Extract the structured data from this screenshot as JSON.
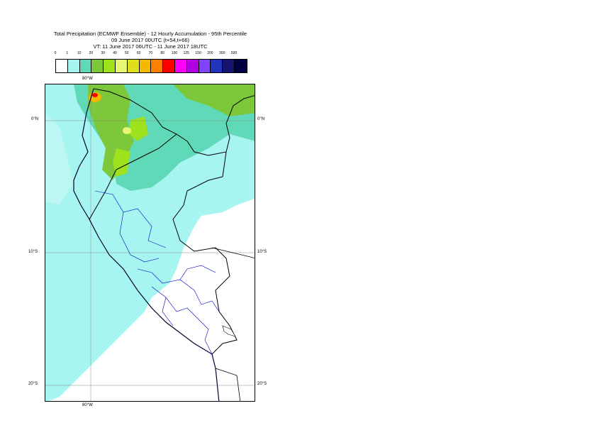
{
  "title": {
    "line1": "Total Precipitation (ECMWF Ensemble) - 12 Hourly Accumulation - 95th Percentile",
    "line2": "09 June 2017 00UTC (t+54,t+66)",
    "line3": "VT: 11 June 2017 06UTC - 11 June 2017 18UTC"
  },
  "legend": {
    "ticks": [
      "0",
      "1",
      "10",
      "20",
      "30",
      "40",
      "50",
      "60",
      "70",
      "80",
      "100",
      "125",
      "150",
      "200",
      "300",
      "500"
    ],
    "colors": [
      "#ffffff",
      "#a6f5f0",
      "#5fd9b8",
      "#7cc83a",
      "#9ee21d",
      "#e7f774",
      "#dede1c",
      "#f5b800",
      "#ff7f00",
      "#ff0000",
      "#ff00ff",
      "#b000e0",
      "#8044ff",
      "#2233bb",
      "#141470",
      "#000040"
    ]
  },
  "axes": {
    "lon_top": "80°W",
    "lon_bottom": "80°W",
    "lat_left": [
      "0°N",
      "10°S",
      "20°S"
    ],
    "lat_right": [
      "0°N",
      "10°S",
      "20°S"
    ]
  }
}
